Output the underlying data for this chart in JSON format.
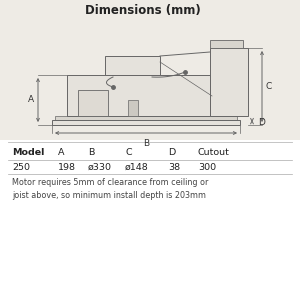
{
  "title": "Dimensions (mm)",
  "bg_color": "#eeebe5",
  "white_bg": "#ffffff",
  "line_color": "#999999",
  "dark_line": "#666666",
  "fill_color": "#e5e2dc",
  "table_headers": [
    "Model",
    "A",
    "B",
    "C",
    "D",
    "Cutout"
  ],
  "table_row": [
    "250",
    "198",
    "ø330",
    "ø148",
    "38",
    "300"
  ],
  "footnote": "Motor requires 5mm of clearance from ceiling or\njoist above, so minimum install depth is 203mm",
  "title_fontsize": 8.5,
  "table_fontsize": 6.8,
  "footnote_fontsize": 5.8
}
